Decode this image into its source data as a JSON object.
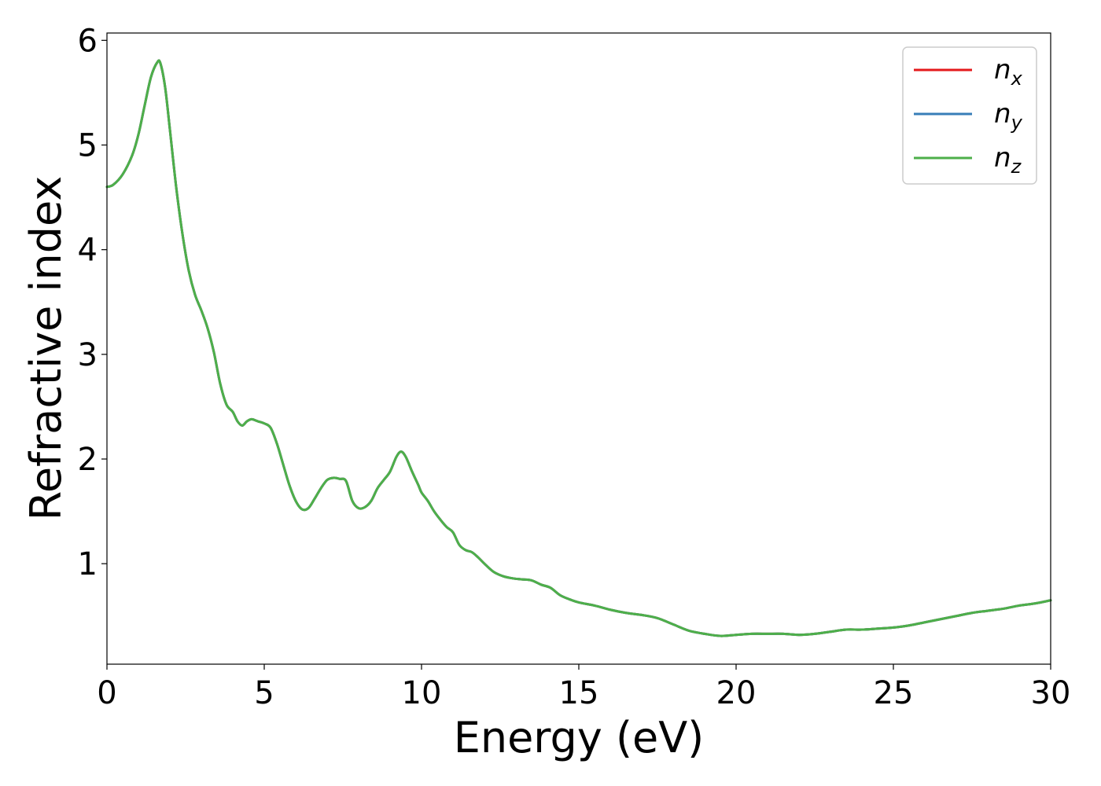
{
  "chart_data": {
    "type": "line",
    "title": "",
    "xlabel": "Energy (eV)",
    "ylabel": "Refractive index",
    "xlim": [
      0,
      30
    ],
    "ylim": [
      0.04,
      6.07
    ],
    "xticks": [
      0,
      5,
      10,
      15,
      20,
      25,
      30
    ],
    "yticks": [
      1,
      2,
      3,
      4,
      5,
      6
    ],
    "grid": false,
    "legend_position": "top-right",
    "series": [
      {
        "name": "n_x",
        "label_base": "n",
        "label_sub": "x",
        "color": "#e41a1c",
        "x": [
          0,
          0.2,
          0.5,
          0.8,
          1.0,
          1.2,
          1.4,
          1.6,
          1.7,
          1.85,
          2.0,
          2.2,
          2.4,
          2.6,
          2.8,
          3.0,
          3.2,
          3.4,
          3.6,
          3.8,
          4.0,
          4.15,
          4.3,
          4.45,
          4.6,
          4.8,
          5.0,
          5.2,
          5.4,
          5.6,
          5.8,
          6.0,
          6.2,
          6.4,
          6.6,
          6.8,
          7.0,
          7.2,
          7.4,
          7.6,
          7.8,
          8.0,
          8.2,
          8.4,
          8.6,
          8.8,
          9.0,
          9.2,
          9.35,
          9.5,
          9.7,
          9.9,
          10.0,
          10.2,
          10.4,
          10.6,
          10.8,
          11.0,
          11.2,
          11.4,
          11.6,
          11.8,
          12.0,
          12.3,
          12.6,
          12.9,
          13.2,
          13.5,
          13.8,
          14.1,
          14.4,
          14.7,
          15.0,
          15.5,
          16.0,
          16.5,
          17.0,
          17.5,
          18.0,
          18.5,
          19.0,
          19.5,
          20.0,
          20.5,
          21.0,
          21.5,
          22.0,
          22.5,
          23.0,
          23.5,
          24.0,
          24.5,
          25.0,
          25.5,
          26.0,
          26.5,
          27.0,
          27.5,
          28.0,
          28.5,
          29.0,
          29.5,
          30.0
        ],
        "y": [
          4.6,
          4.62,
          4.72,
          4.9,
          5.1,
          5.38,
          5.65,
          5.79,
          5.78,
          5.55,
          5.15,
          4.6,
          4.15,
          3.8,
          3.57,
          3.42,
          3.25,
          3.02,
          2.72,
          2.52,
          2.45,
          2.36,
          2.32,
          2.36,
          2.38,
          2.36,
          2.34,
          2.3,
          2.15,
          1.95,
          1.75,
          1.6,
          1.52,
          1.53,
          1.62,
          1.72,
          1.8,
          1.82,
          1.81,
          1.79,
          1.6,
          1.53,
          1.54,
          1.6,
          1.72,
          1.8,
          1.88,
          2.02,
          2.07,
          2.02,
          1.88,
          1.75,
          1.68,
          1.6,
          1.5,
          1.42,
          1.35,
          1.3,
          1.18,
          1.13,
          1.11,
          1.06,
          1.0,
          0.92,
          0.88,
          0.86,
          0.85,
          0.84,
          0.8,
          0.77,
          0.7,
          0.66,
          0.63,
          0.6,
          0.56,
          0.53,
          0.51,
          0.48,
          0.42,
          0.36,
          0.33,
          0.31,
          0.32,
          0.33,
          0.33,
          0.33,
          0.32,
          0.33,
          0.35,
          0.37,
          0.37,
          0.38,
          0.39,
          0.41,
          0.44,
          0.47,
          0.5,
          0.53,
          0.55,
          0.57,
          0.6,
          0.62,
          0.65
        ]
      },
      {
        "name": "n_y",
        "label_base": "n",
        "label_sub": "y",
        "color": "#377eb8",
        "x": [
          0,
          0.2,
          0.5,
          0.8,
          1.0,
          1.2,
          1.4,
          1.6,
          1.7,
          1.85,
          2.0,
          2.2,
          2.4,
          2.6,
          2.8,
          3.0,
          3.2,
          3.4,
          3.6,
          3.8,
          4.0,
          4.15,
          4.3,
          4.45,
          4.6,
          4.8,
          5.0,
          5.2,
          5.4,
          5.6,
          5.8,
          6.0,
          6.2,
          6.4,
          6.6,
          6.8,
          7.0,
          7.2,
          7.4,
          7.6,
          7.8,
          8.0,
          8.2,
          8.4,
          8.6,
          8.8,
          9.0,
          9.2,
          9.35,
          9.5,
          9.7,
          9.9,
          10.0,
          10.2,
          10.4,
          10.6,
          10.8,
          11.0,
          11.2,
          11.4,
          11.6,
          11.8,
          12.0,
          12.3,
          12.6,
          12.9,
          13.2,
          13.5,
          13.8,
          14.1,
          14.4,
          14.7,
          15.0,
          15.5,
          16.0,
          16.5,
          17.0,
          17.5,
          18.0,
          18.5,
          19.0,
          19.5,
          20.0,
          20.5,
          21.0,
          21.5,
          22.0,
          22.5,
          23.0,
          23.5,
          24.0,
          24.5,
          25.0,
          25.5,
          26.0,
          26.5,
          27.0,
          27.5,
          28.0,
          28.5,
          29.0,
          29.5,
          30.0
        ],
        "y": [
          4.6,
          4.62,
          4.72,
          4.9,
          5.1,
          5.38,
          5.65,
          5.79,
          5.78,
          5.55,
          5.15,
          4.6,
          4.15,
          3.8,
          3.57,
          3.42,
          3.25,
          3.02,
          2.72,
          2.52,
          2.45,
          2.36,
          2.32,
          2.36,
          2.38,
          2.36,
          2.34,
          2.3,
          2.15,
          1.95,
          1.75,
          1.6,
          1.52,
          1.53,
          1.62,
          1.72,
          1.8,
          1.82,
          1.81,
          1.79,
          1.6,
          1.53,
          1.54,
          1.6,
          1.72,
          1.8,
          1.88,
          2.02,
          2.07,
          2.02,
          1.88,
          1.75,
          1.68,
          1.6,
          1.5,
          1.42,
          1.35,
          1.3,
          1.18,
          1.13,
          1.11,
          1.06,
          1.0,
          0.92,
          0.88,
          0.86,
          0.85,
          0.84,
          0.8,
          0.77,
          0.7,
          0.66,
          0.63,
          0.6,
          0.56,
          0.53,
          0.51,
          0.48,
          0.42,
          0.36,
          0.33,
          0.31,
          0.32,
          0.33,
          0.33,
          0.33,
          0.32,
          0.33,
          0.35,
          0.37,
          0.37,
          0.38,
          0.39,
          0.41,
          0.44,
          0.47,
          0.5,
          0.53,
          0.55,
          0.57,
          0.6,
          0.62,
          0.65
        ]
      },
      {
        "name": "n_z",
        "label_base": "n",
        "label_sub": "z",
        "color": "#4daf4a",
        "x": [
          0,
          0.2,
          0.5,
          0.8,
          1.0,
          1.2,
          1.4,
          1.6,
          1.7,
          1.85,
          2.0,
          2.2,
          2.4,
          2.6,
          2.8,
          3.0,
          3.2,
          3.4,
          3.6,
          3.8,
          4.0,
          4.15,
          4.3,
          4.45,
          4.6,
          4.8,
          5.0,
          5.2,
          5.4,
          5.6,
          5.8,
          6.0,
          6.2,
          6.4,
          6.6,
          6.8,
          7.0,
          7.2,
          7.4,
          7.6,
          7.8,
          8.0,
          8.2,
          8.4,
          8.6,
          8.8,
          9.0,
          9.2,
          9.35,
          9.5,
          9.7,
          9.9,
          10.0,
          10.2,
          10.4,
          10.6,
          10.8,
          11.0,
          11.2,
          11.4,
          11.6,
          11.8,
          12.0,
          12.3,
          12.6,
          12.9,
          13.2,
          13.5,
          13.8,
          14.1,
          14.4,
          14.7,
          15.0,
          15.5,
          16.0,
          16.5,
          17.0,
          17.5,
          18.0,
          18.5,
          19.0,
          19.5,
          20.0,
          20.5,
          21.0,
          21.5,
          22.0,
          22.5,
          23.0,
          23.5,
          24.0,
          24.5,
          25.0,
          25.5,
          26.0,
          26.5,
          27.0,
          27.5,
          28.0,
          28.5,
          29.0,
          29.5,
          30.0
        ],
        "y": [
          4.6,
          4.62,
          4.72,
          4.9,
          5.1,
          5.38,
          5.65,
          5.79,
          5.78,
          5.55,
          5.15,
          4.6,
          4.15,
          3.8,
          3.57,
          3.42,
          3.25,
          3.02,
          2.72,
          2.52,
          2.45,
          2.36,
          2.32,
          2.36,
          2.38,
          2.36,
          2.34,
          2.3,
          2.15,
          1.95,
          1.75,
          1.6,
          1.52,
          1.53,
          1.62,
          1.72,
          1.8,
          1.82,
          1.81,
          1.79,
          1.6,
          1.53,
          1.54,
          1.6,
          1.72,
          1.8,
          1.88,
          2.02,
          2.07,
          2.02,
          1.88,
          1.75,
          1.68,
          1.6,
          1.5,
          1.42,
          1.35,
          1.3,
          1.18,
          1.13,
          1.11,
          1.06,
          1.0,
          0.92,
          0.88,
          0.86,
          0.85,
          0.84,
          0.8,
          0.77,
          0.7,
          0.66,
          0.63,
          0.6,
          0.56,
          0.53,
          0.51,
          0.48,
          0.42,
          0.36,
          0.33,
          0.31,
          0.32,
          0.33,
          0.33,
          0.33,
          0.32,
          0.33,
          0.35,
          0.37,
          0.37,
          0.38,
          0.39,
          0.41,
          0.44,
          0.47,
          0.5,
          0.53,
          0.55,
          0.57,
          0.6,
          0.62,
          0.65
        ]
      }
    ]
  }
}
